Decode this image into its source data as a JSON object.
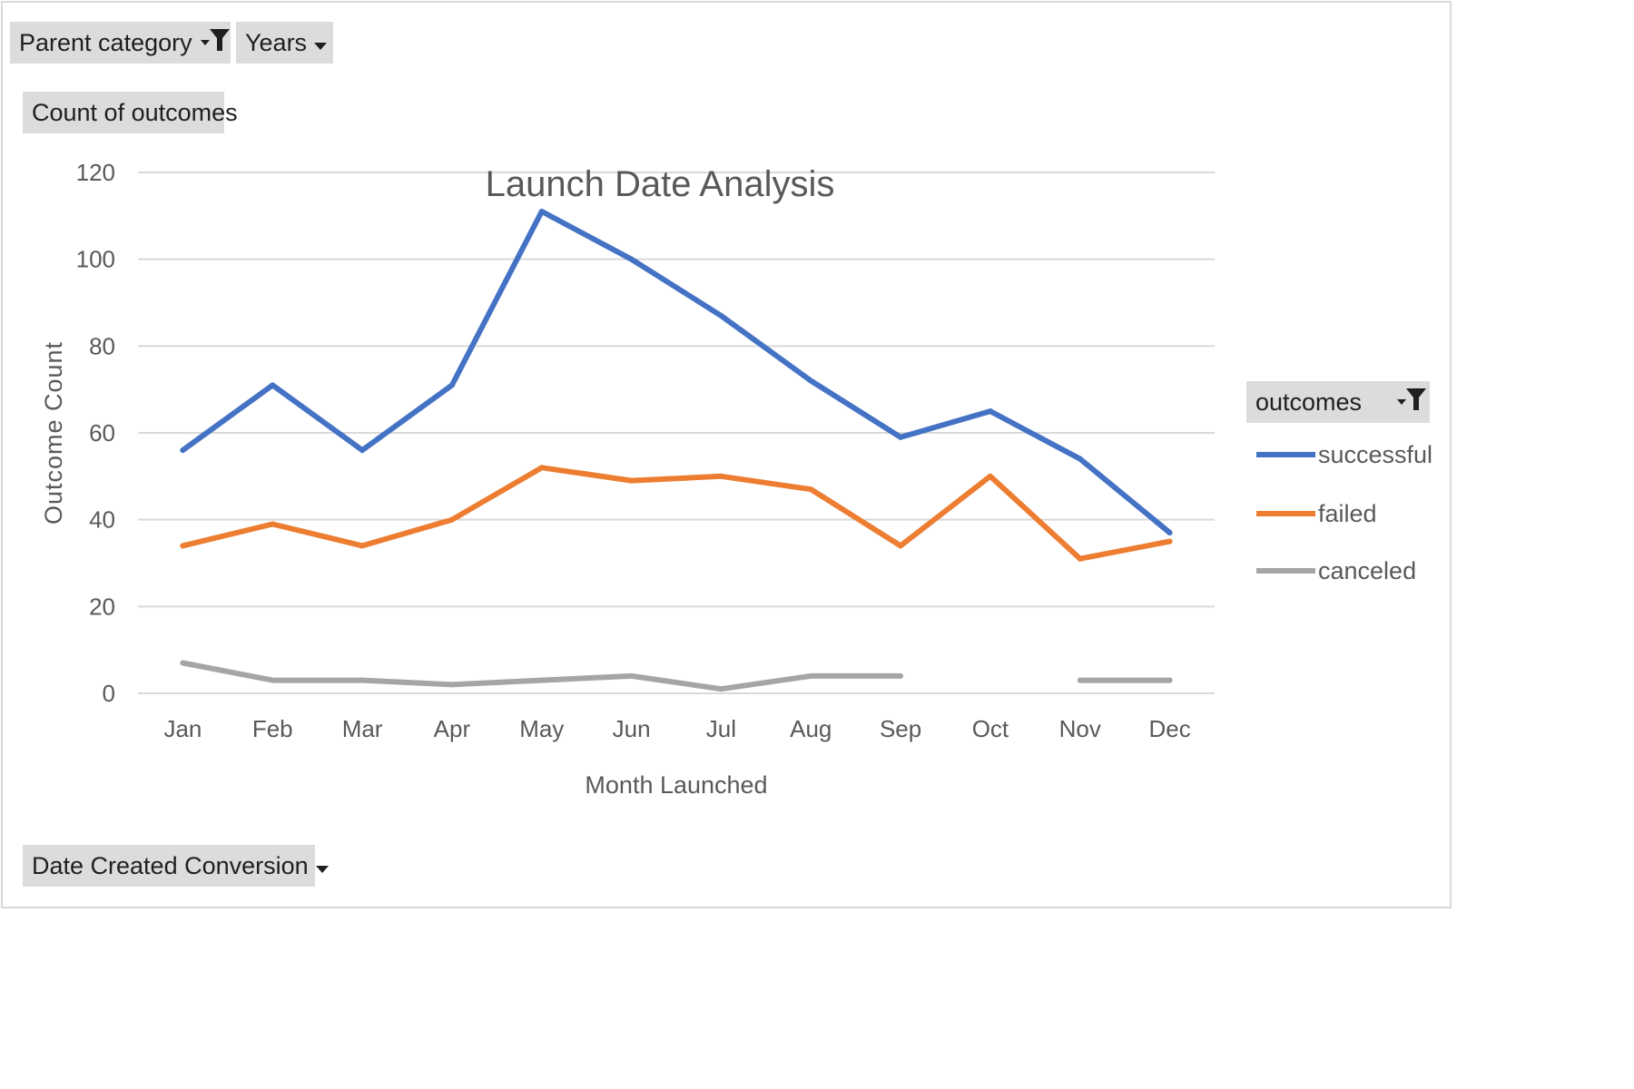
{
  "pivot": {
    "filter_fields": [
      "Parent category",
      "Years"
    ],
    "values_field": "Count of outcomes",
    "axis_field": "Date Created Conversion",
    "legend_field": "outcomes"
  },
  "colors": {
    "successful": "#4472c4",
    "failed": "#ed7d31",
    "canceled": "#a5a5a5",
    "gridline": "#d9d9d9",
    "axis_text": "#595959",
    "field_button": "#dcdcdc"
  },
  "icons": {
    "parent_category": "dropdown-filter-icon",
    "years": "dropdown-arrow-icon",
    "date_created_conversion": "dropdown-arrow-icon",
    "outcomes": "dropdown-filter-icon"
  },
  "chart_data": {
    "type": "line",
    "title": "Launch Date Analysis",
    "xlabel": "Month Launched",
    "ylabel": "Outcome Count",
    "categories": [
      "Jan",
      "Feb",
      "Mar",
      "Apr",
      "May",
      "Jun",
      "Jul",
      "Aug",
      "Sep",
      "Oct",
      "Nov",
      "Dec"
    ],
    "ylim": [
      0,
      120
    ],
    "yticks": [
      0,
      20,
      40,
      60,
      80,
      100,
      120
    ],
    "grid": true,
    "legend_position": "right",
    "series": [
      {
        "name": "successful",
        "values": [
          56,
          71,
          56,
          71,
          111,
          100,
          87,
          72,
          59,
          65,
          54,
          37
        ]
      },
      {
        "name": "failed",
        "values": [
          34,
          39,
          34,
          40,
          52,
          49,
          50,
          47,
          34,
          50,
          31,
          35
        ]
      },
      {
        "name": "canceled",
        "values": [
          7,
          3,
          3,
          2,
          3,
          4,
          1,
          4,
          4,
          null,
          3,
          3
        ]
      }
    ]
  }
}
